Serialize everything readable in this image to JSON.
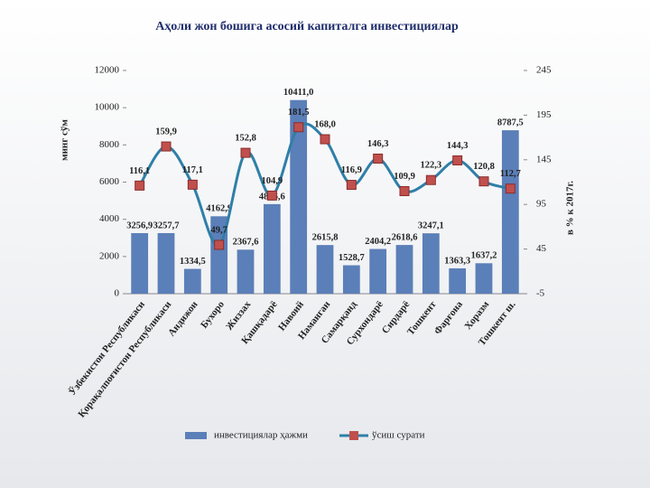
{
  "chart_data": {
    "type": "bar_line",
    "title": "Аҳоли жон бошига асосий капиталга инвестициялар",
    "y_label": "минг сўм",
    "y2_label": "в % к 2017г.",
    "categories": [
      "Ўзбекистон Республикаси",
      "Қорақалпоғистон Республикаси",
      "Андижон",
      "Бухоро",
      "Жиззах",
      "Қашқадарё",
      "Навоий",
      "Наманган",
      "Самарқанд",
      "Сурхондарё",
      "Сирдарё",
      "Тошкент",
      "Фарғона",
      "Хоразм",
      "Тошкент ш."
    ],
    "series": [
      {
        "name": "инвестициялар ҳажми",
        "color": "#5b7fb8",
        "type": "bar",
        "values": [
          3256.9,
          3257.7,
          1334.5,
          4162.9,
          2367.6,
          4816.6,
          10411.0,
          2615.8,
          1528.7,
          2404.2,
          2618.6,
          3247.1,
          1363.3,
          1637.2,
          8787.5
        ],
        "value_labels": [
          "3256,9",
          "3257,7",
          "1334,5",
          "4162,9",
          "2367,6",
          "4816,6",
          "10411,0",
          "2615,8",
          "1528,7",
          "2404,2",
          "2618,6",
          "3247,1",
          "1363,3",
          "1637,2",
          "8787,5"
        ]
      },
      {
        "name": "ўсиш сурати",
        "color": "#2f7fa8",
        "marker_color": "#c0504d",
        "type": "line",
        "axis": "y2",
        "values": [
          116.1,
          159.9,
          117.1,
          49.7,
          152.8,
          104.9,
          181.5,
          168.0,
          116.9,
          146.3,
          109.9,
          122.3,
          144.3,
          120.8,
          112.7
        ],
        "value_labels": [
          "116,1",
          "159,9",
          "117,1",
          "49,7",
          "152,8",
          "104,9",
          "181,5",
          "168,0",
          "116,9",
          "146,3",
          "109,9",
          "122,3",
          "144,3",
          "120,8",
          "112,7"
        ]
      }
    ],
    "ylim": [
      0,
      12000
    ],
    "yticks": [
      0,
      2000,
      4000,
      6000,
      8000,
      10000,
      12000
    ],
    "y2lim": [
      -5,
      245
    ],
    "y2ticks": [
      -5,
      45,
      95,
      145,
      195,
      245
    ],
    "grid": false,
    "legend": "bottom"
  }
}
